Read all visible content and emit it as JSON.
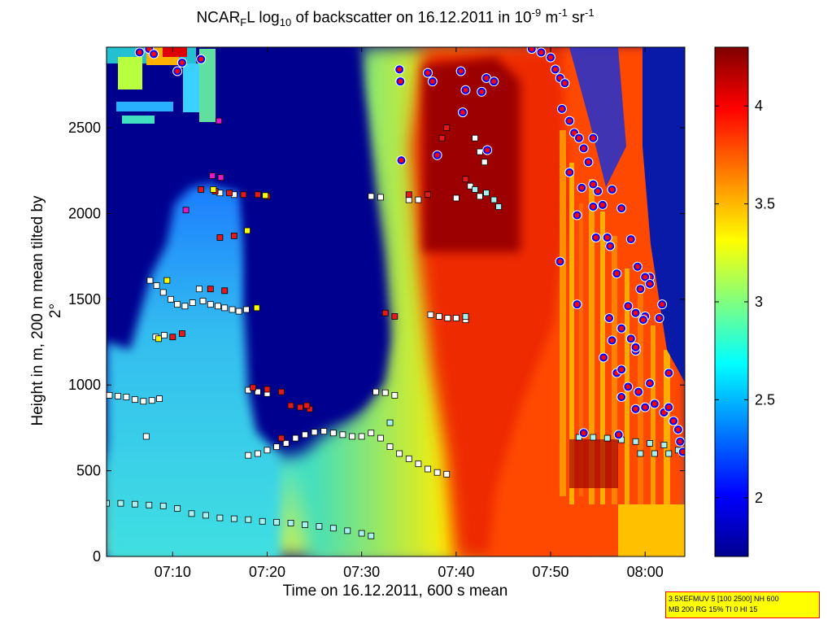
{
  "chart_data": {
    "type": "heatmap",
    "title_parts": [
      "NCAR",
      "F",
      "L log",
      "10",
      " of backscatter on 16.12.2011 in 10",
      "-9",
      " m",
      "-1",
      " sr",
      "-1"
    ],
    "xlabel": "Time on 16.12.2011, 600 s mean",
    "ylabel": "Height in m, 200 m mean tilted by 2°",
    "x_tick_labels": [
      "07:10",
      "07:20",
      "07:30",
      "07:40",
      "07:50",
      "08:00"
    ],
    "x_ticks_min": [
      70,
      80,
      90,
      100,
      110,
      120
    ],
    "xlim_min": [
      63,
      124.2
    ],
    "y_ticks": [
      0,
      500,
      1000,
      1500,
      2000,
      2500
    ],
    "ylim": [
      0,
      2970
    ],
    "colorbar": {
      "ticks": [
        2,
        2.5,
        3,
        3.5,
        4
      ],
      "range": [
        1.7,
        4.3
      ],
      "colormap": "jet",
      "colors": [
        "#00008f",
        "#0000ff",
        "#00ffff",
        "#ffff00",
        "#ff0000",
        "#800000"
      ]
    },
    "background_color": "#00008f",
    "field_patches": [
      {
        "region": "left aerosol column",
        "x_min": [
          65.5,
          76.5
        ],
        "y": [
          0,
          2100
        ],
        "log10": 2.75
      },
      {
        "region": "clear-air hole",
        "x_min": [
          76,
          91
        ],
        "y": [
          880,
          2970
        ],
        "log10": 1.8
      },
      {
        "region": "boundary layer",
        "x_min": [
          63,
          100
        ],
        "y": [
          0,
          500
        ],
        "log10": 3.1
      },
      {
        "region": "central gradient",
        "x_min": [
          90,
          106
        ],
        "y": [
          0,
          2970
        ],
        "log10": 3.6
      },
      {
        "region": "right cloud/precip",
        "x_min": [
          106,
          124.2
        ],
        "y": [
          300,
          2970
        ],
        "log10": 4.0
      },
      {
        "region": "upper dark red block",
        "x_min": [
          96,
          106
        ],
        "y": [
          1770,
          2970
        ],
        "log10": 4.3
      }
    ],
    "annotations": {
      "text_lines": [
        "3.5XEFMUV 5 [100 2500] NH 600",
        "MB 200 RG 15% TI 0 HI 15"
      ],
      "background": "#ffff00",
      "border": "#ff0000"
    },
    "marker_series": [
      {
        "marker": "square",
        "fill": "#ffffff",
        "edge": "#000000",
        "points": [
          [
            63.3,
            940
          ],
          [
            64.2,
            935
          ],
          [
            65.1,
            930
          ],
          [
            66.0,
            915
          ],
          [
            66.9,
            905
          ],
          [
            67.8,
            910
          ],
          [
            68.6,
            920
          ],
          [
            67.2,
            700
          ],
          [
            69.1,
            1290
          ],
          [
            68.2,
            1280
          ],
          [
            67.6,
            1610
          ],
          [
            68.3,
            1580
          ],
          [
            69.0,
            1540
          ],
          [
            69.8,
            1500
          ],
          [
            70.5,
            1470
          ],
          [
            71.3,
            1460
          ],
          [
            72.1,
            1480
          ],
          [
            72.8,
            1560
          ],
          [
            73.2,
            1490
          ],
          [
            74.0,
            1470
          ],
          [
            74.8,
            1460
          ],
          [
            75.5,
            1450
          ],
          [
            76.3,
            1440
          ],
          [
            77.0,
            1430
          ],
          [
            77.8,
            1440
          ],
          [
            75.0,
            2120
          ],
          [
            76.5,
            2110
          ],
          [
            78.0,
            970
          ],
          [
            79.0,
            960
          ],
          [
            80.0,
            950
          ],
          [
            78.0,
            590
          ],
          [
            79.0,
            600
          ],
          [
            80.0,
            620
          ],
          [
            81.0,
            640
          ],
          [
            82.0,
            660
          ],
          [
            83.0,
            690
          ],
          [
            84.0,
            710
          ],
          [
            85.0,
            725
          ],
          [
            86.0,
            730
          ],
          [
            87.0,
            720
          ],
          [
            88.0,
            710
          ],
          [
            89.0,
            700
          ],
          [
            90.0,
            700
          ],
          [
            91.0,
            720
          ],
          [
            92.0,
            690
          ],
          [
            93.0,
            640
          ],
          [
            94.0,
            600
          ],
          [
            95.0,
            570
          ],
          [
            96.0,
            540
          ],
          [
            97.0,
            510
          ],
          [
            98.0,
            490
          ],
          [
            99.0,
            480
          ],
          [
            91.5,
            960
          ],
          [
            92.5,
            955
          ],
          [
            93.5,
            940
          ],
          [
            91.0,
            2100
          ],
          [
            92.0,
            2095
          ],
          [
            95.0,
            2080
          ],
          [
            96.0,
            2080
          ],
          [
            97.3,
            1410
          ],
          [
            98.2,
            1400
          ],
          [
            99.1,
            1390
          ],
          [
            100.0,
            1390
          ],
          [
            101.0,
            1380
          ],
          [
            102.0,
            2440
          ],
          [
            102.5,
            2360
          ],
          [
            101.5,
            2160
          ],
          [
            102.5,
            2100
          ],
          [
            100.0,
            2090
          ],
          [
            103.0,
            2300
          ]
        ]
      },
      {
        "marker": "square",
        "fill": "#aaf2f2",
        "edge": "#000000",
        "points": [
          [
            63.0,
            310
          ],
          [
            64.5,
            310
          ],
          [
            66.0,
            305
          ],
          [
            67.5,
            300
          ],
          [
            69.0,
            295
          ],
          [
            70.5,
            280
          ],
          [
            72.0,
            250
          ],
          [
            73.5,
            240
          ],
          [
            75.0,
            225
          ],
          [
            76.5,
            220
          ],
          [
            78.0,
            215
          ],
          [
            79.5,
            205
          ],
          [
            81.0,
            200
          ],
          [
            82.5,
            195
          ],
          [
            84.0,
            185
          ],
          [
            85.5,
            175
          ],
          [
            87.0,
            165
          ],
          [
            88.5,
            150
          ],
          [
            90.0,
            135
          ],
          [
            91.0,
            120
          ],
          [
            113.0,
            695
          ],
          [
            114.5,
            695
          ],
          [
            116.0,
            690
          ],
          [
            117.5,
            680
          ],
          [
            119.0,
            670
          ],
          [
            120.5,
            660
          ],
          [
            122.0,
            650
          ],
          [
            123.5,
            620
          ],
          [
            119.5,
            600
          ],
          [
            121.0,
            600
          ],
          [
            122.5,
            600
          ],
          [
            124.0,
            600
          ],
          [
            101.0,
            1400
          ],
          [
            102.0,
            2140
          ],
          [
            103.2,
            2120
          ],
          [
            104.0,
            2080
          ],
          [
            104.5,
            2040
          ],
          [
            93.0,
            780
          ]
        ]
      },
      {
        "marker": "square",
        "fill": "#e3191b",
        "edge": "#000000",
        "points": [
          [
            73.0,
            2140
          ],
          [
            74.5,
            2130
          ],
          [
            76.0,
            2120
          ],
          [
            77.5,
            2110
          ],
          [
            75.0,
            1860
          ],
          [
            76.5,
            1870
          ],
          [
            74.0,
            1560
          ],
          [
            75.5,
            1550
          ],
          [
            70.0,
            1280
          ],
          [
            71.0,
            1300
          ],
          [
            78.5,
            985
          ],
          [
            80.0,
            975
          ],
          [
            81.5,
            960
          ],
          [
            82.5,
            880
          ],
          [
            83.5,
            870
          ],
          [
            84.5,
            860
          ],
          [
            79.0,
            2110
          ],
          [
            80.0,
            2100
          ],
          [
            81.5,
            690
          ],
          [
            84.2,
            880
          ],
          [
            92.5,
            1420
          ],
          [
            93.5,
            1400
          ],
          [
            95.0,
            2110
          ],
          [
            97.0,
            2110
          ],
          [
            99.0,
            2500
          ],
          [
            101.0,
            2200
          ],
          [
            98.5,
            2440
          ]
        ]
      },
      {
        "marker": "square",
        "fill": "#ffff00",
        "edge": "#000000",
        "points": [
          [
            74.3,
            2140
          ],
          [
            77.9,
            1900
          ],
          [
            78.9,
            1450
          ],
          [
            69.4,
            1610
          ],
          [
            68.5,
            1270
          ],
          [
            79.8,
            2105
          ]
        ]
      },
      {
        "marker": "square",
        "fill": "#e31ac8",
        "edge": "#000000",
        "points": [
          [
            74.2,
            2220
          ],
          [
            75.1,
            2210
          ],
          [
            74.9,
            2540
          ],
          [
            71.4,
            2020
          ]
        ]
      },
      {
        "marker": "circle",
        "fill": "#ff0000",
        "edge": "#0000ff",
        "points": [
          [
            66.5,
            2940
          ],
          [
            67.5,
            2960
          ],
          [
            68.0,
            2930
          ],
          [
            70.5,
            2830
          ],
          [
            71.0,
            2880
          ],
          [
            73.0,
            2900
          ],
          [
            97.0,
            2820
          ],
          [
            97.5,
            2770
          ],
          [
            100.5,
            2830
          ],
          [
            101.0,
            2720
          ],
          [
            103.2,
            2790
          ],
          [
            104.0,
            2770
          ],
          [
            108.0,
            2960
          ],
          [
            109.0,
            2940
          ],
          [
            110.0,
            2910
          ],
          [
            110.5,
            2840
          ],
          [
            111.0,
            2790
          ],
          [
            111.5,
            2760
          ],
          [
            111.2,
            2610
          ],
          [
            112.0,
            2540
          ],
          [
            112.5,
            2470
          ],
          [
            113.0,
            2440
          ],
          [
            113.5,
            2380
          ],
          [
            114.0,
            2300
          ],
          [
            114.5,
            2440
          ],
          [
            112.0,
            2240
          ],
          [
            113.3,
            2150
          ],
          [
            114.5,
            2040
          ],
          [
            115.5,
            2050
          ],
          [
            116.5,
            2140
          ],
          [
            117.5,
            2030
          ],
          [
            112.8,
            1990
          ],
          [
            114.8,
            1860
          ],
          [
            116.3,
            1810
          ],
          [
            118.5,
            1850
          ],
          [
            119.2,
            1690
          ],
          [
            117.0,
            1650
          ],
          [
            119.5,
            1560
          ],
          [
            120.5,
            1630
          ],
          [
            118.2,
            1460
          ],
          [
            119.0,
            1420
          ],
          [
            120.0,
            1400
          ],
          [
            117.5,
            1330
          ],
          [
            118.5,
            1270
          ],
          [
            119.0,
            1200
          ],
          [
            116.5,
            1260
          ],
          [
            117.0,
            1070
          ],
          [
            117.5,
            1090
          ],
          [
            118.2,
            990
          ],
          [
            119.3,
            960
          ],
          [
            120.5,
            1010
          ],
          [
            117.5,
            930
          ],
          [
            119.0,
            860
          ],
          [
            120.0,
            870
          ],
          [
            121.0,
            890
          ],
          [
            122.0,
            840
          ],
          [
            122.5,
            870
          ],
          [
            123.0,
            790
          ],
          [
            123.5,
            740
          ],
          [
            123.7,
            670
          ],
          [
            124.0,
            610
          ],
          [
            120.0,
            1630
          ],
          [
            120.5,
            1590
          ],
          [
            119.8,
            1380
          ],
          [
            121.5,
            1390
          ],
          [
            121.8,
            1470
          ],
          [
            116.0,
            1860
          ],
          [
            115.0,
            2130
          ],
          [
            122.5,
            1070
          ],
          [
            115.6,
            1160
          ],
          [
            116.2,
            1390
          ],
          [
            113.5,
            720
          ],
          [
            112.8,
            1470
          ],
          [
            117.2,
            710
          ],
          [
            119.0,
            1220
          ],
          [
            111.0,
            1720
          ],
          [
            114.5,
            2170
          ],
          [
            94.2,
            2310
          ],
          [
            94.1,
            2770
          ],
          [
            94.0,
            2840
          ],
          [
            100.7,
            2590
          ],
          [
            102.7,
            2710
          ],
          [
            103.3,
            2370
          ],
          [
            98.0,
            2340
          ]
        ]
      }
    ]
  }
}
